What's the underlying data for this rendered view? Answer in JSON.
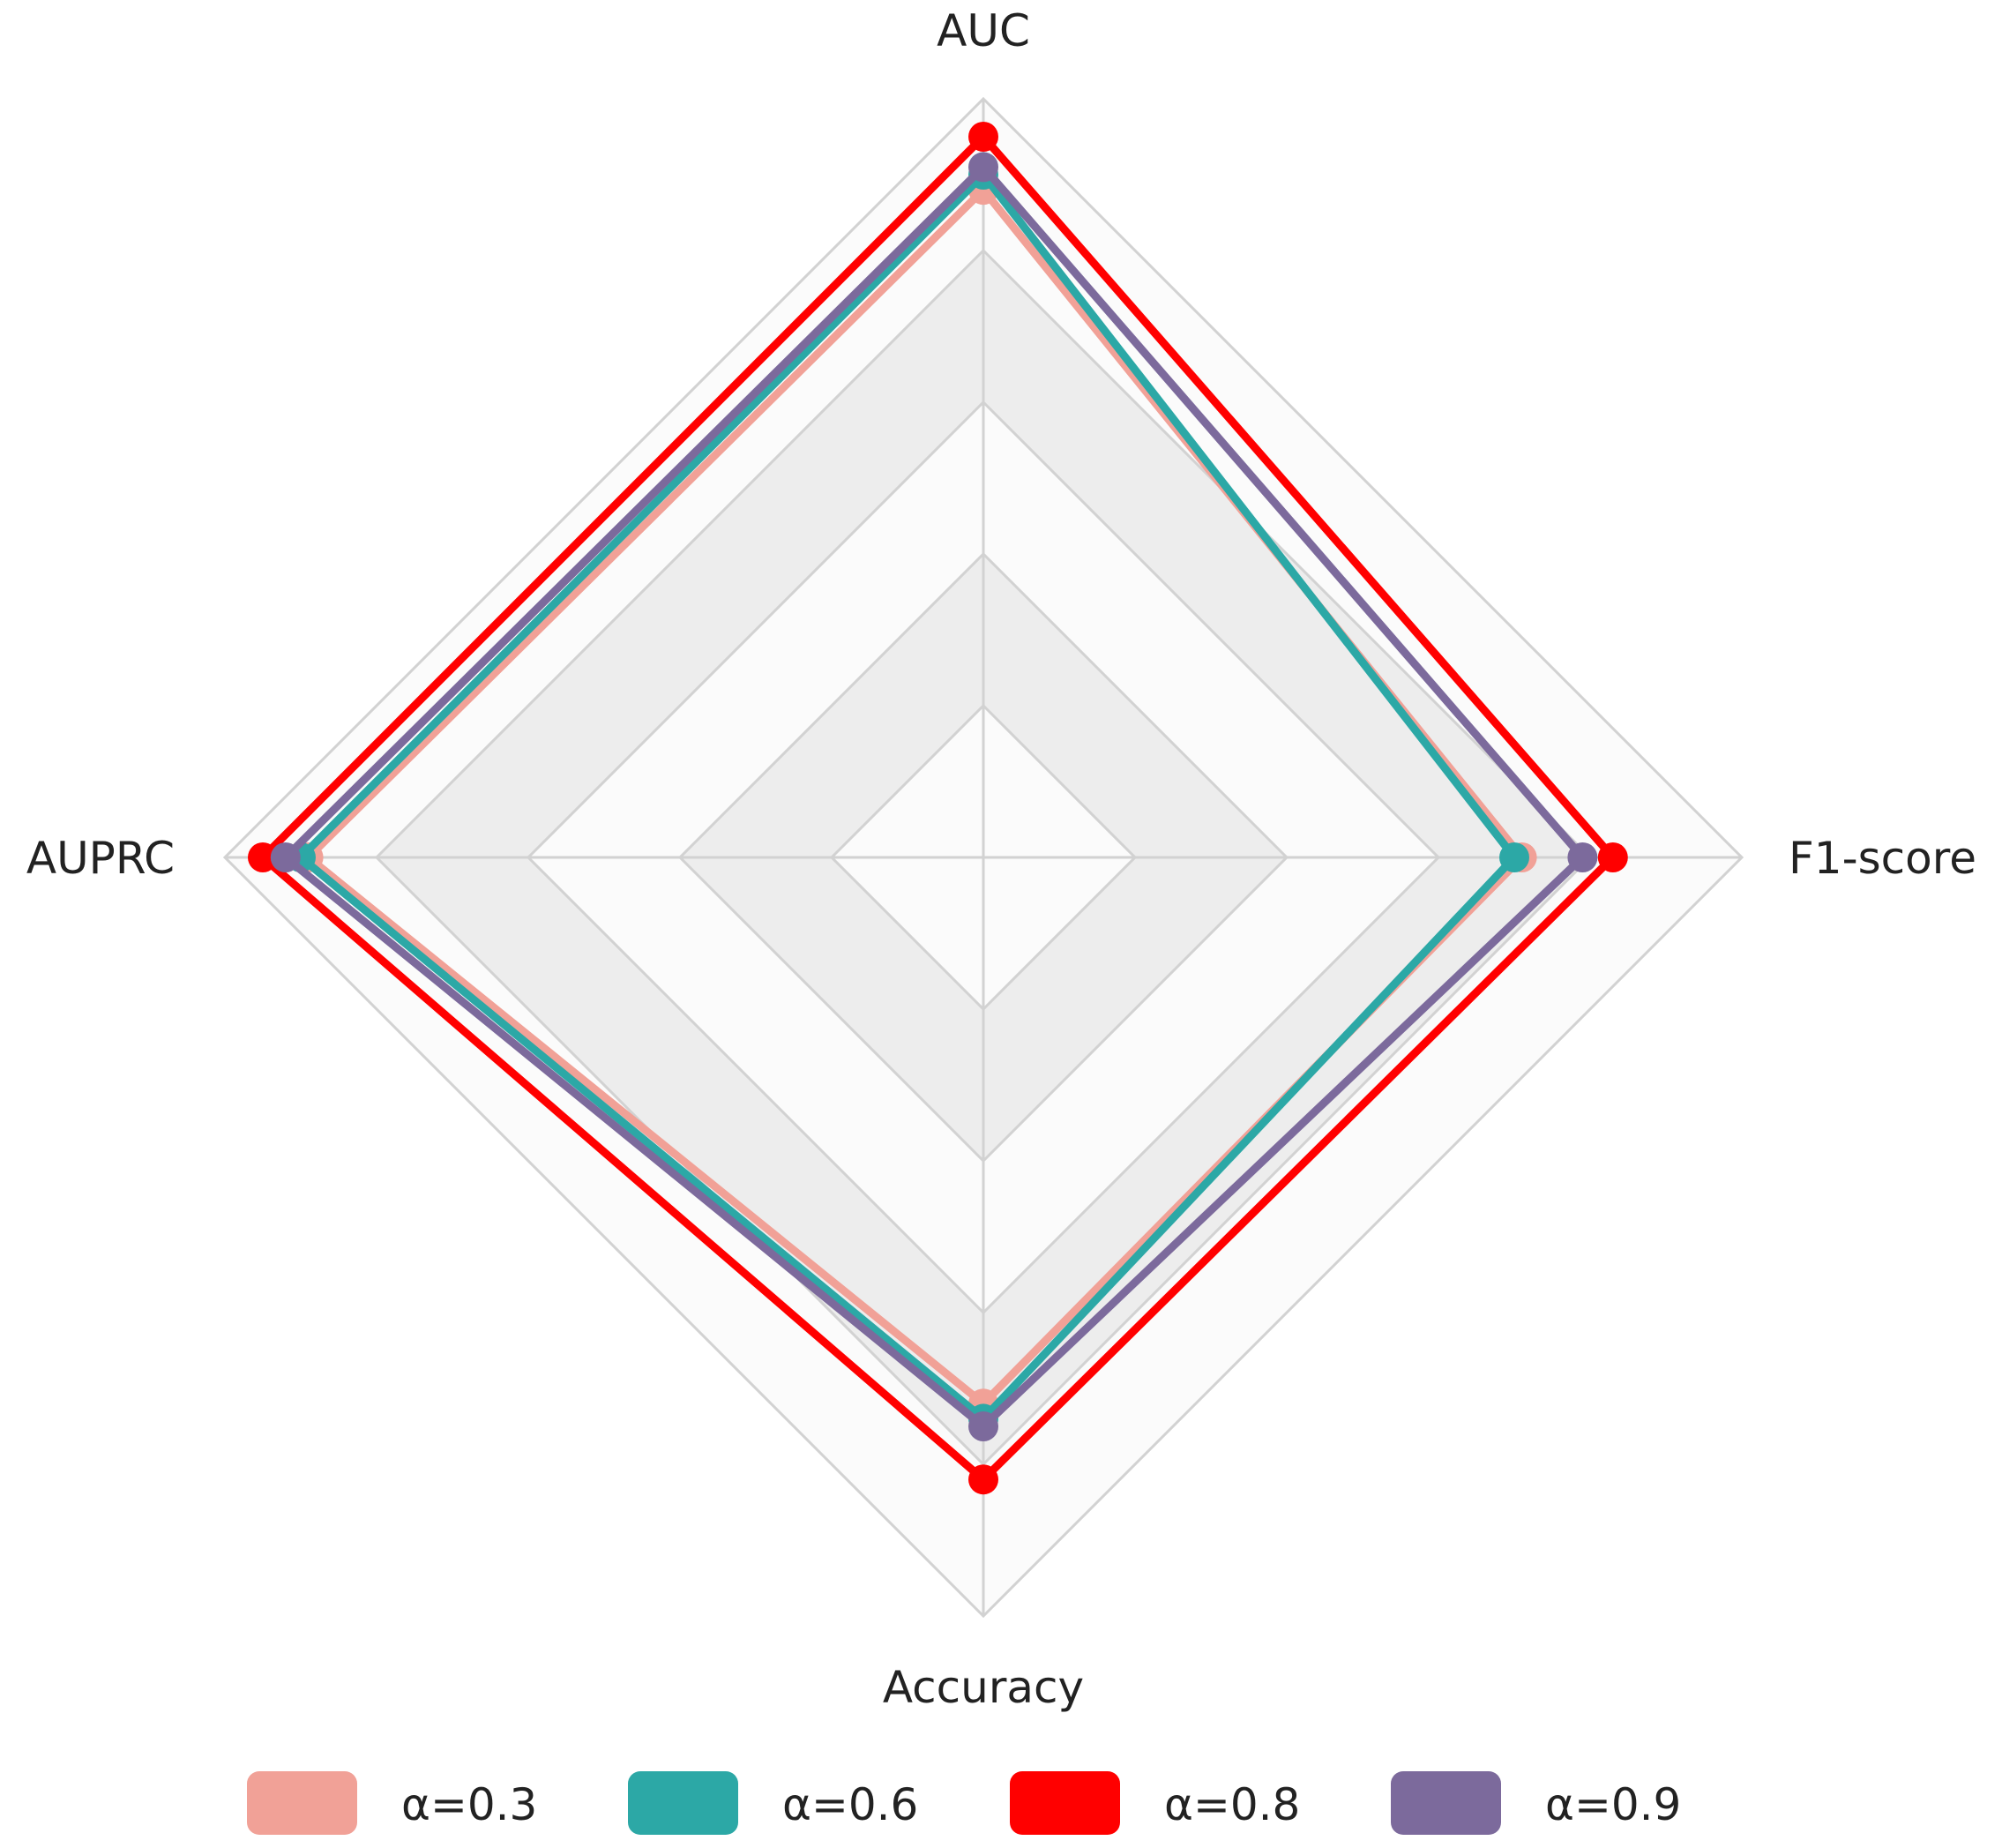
{
  "chart_data": {
    "type": "radar",
    "axes": [
      "AUC",
      "F1-score",
      "Accuracy",
      "AUPRC"
    ],
    "rlim": [
      0,
      1
    ],
    "ring_count": 5,
    "series": [
      {
        "name": "α=0.3",
        "color": "#F1A197",
        "values": [
          0.88,
          0.71,
          0.72,
          0.89
        ]
      },
      {
        "name": "α=0.6",
        "color": "#2CA8A6",
        "values": [
          0.9,
          0.7,
          0.74,
          0.9
        ]
      },
      {
        "name": "α=0.8",
        "color": "#FF0000",
        "values": [
          0.95,
          0.83,
          0.82,
          0.95
        ]
      },
      {
        "name": "α=0.9",
        "color": "#7C6A9C",
        "values": [
          0.91,
          0.79,
          0.75,
          0.92
        ]
      }
    ],
    "legend_position": "bottom",
    "grid": true
  }
}
